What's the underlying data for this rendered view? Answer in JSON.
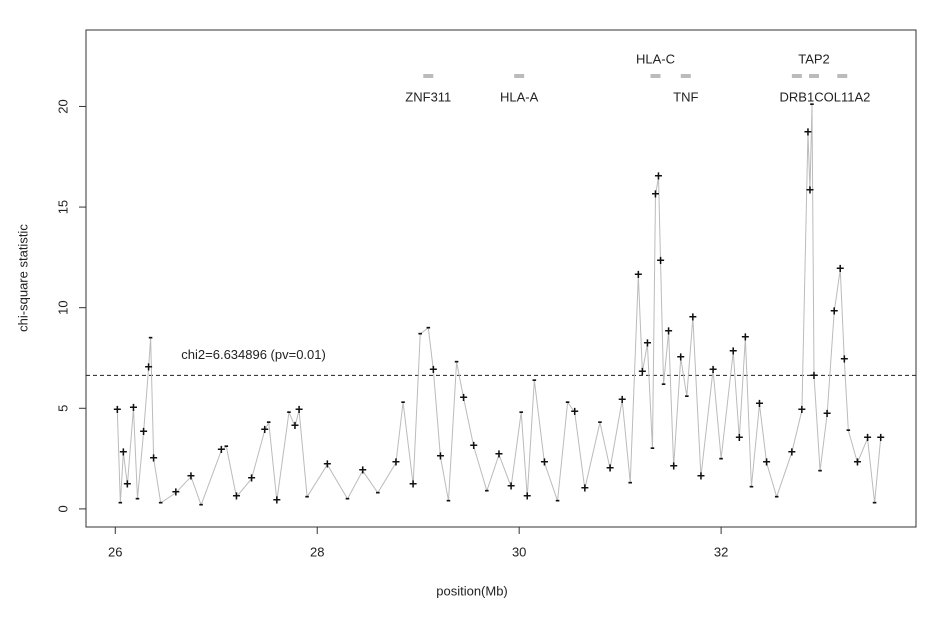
{
  "chart_data": {
    "type": "line",
    "xlabel": "position(Mb)",
    "ylabel": "chi-square statistic",
    "xlim": [
      25.71,
      33.93
    ],
    "ylim": [
      -0.9,
      23.8
    ],
    "xticks": [
      26,
      28,
      30,
      32
    ],
    "yticks": [
      0,
      5,
      10,
      15,
      20
    ],
    "line_color": "#bbbbbb",
    "point_color": "#111111",
    "x": [
      26.02,
      26.05,
      26.08,
      26.12,
      26.18,
      26.22,
      26.28,
      26.33,
      26.35,
      26.38,
      26.45,
      26.6,
      26.75,
      26.85,
      27.05,
      27.1,
      27.2,
      27.35,
      27.48,
      27.52,
      27.6,
      27.72,
      27.78,
      27.82,
      27.9,
      28.1,
      28.3,
      28.45,
      28.6,
      28.78,
      28.85,
      28.95,
      29.02,
      29.1,
      29.15,
      29.22,
      29.3,
      29.38,
      29.45,
      29.55,
      29.68,
      29.8,
      29.92,
      30.02,
      30.08,
      30.15,
      30.25,
      30.38,
      30.48,
      30.55,
      30.65,
      30.8,
      30.9,
      31.02,
      31.1,
      31.18,
      31.22,
      31.27,
      31.32,
      31.35,
      31.38,
      31.4,
      31.43,
      31.48,
      31.53,
      31.6,
      31.66,
      31.72,
      31.8,
      31.92,
      32.0,
      32.12,
      32.18,
      32.24,
      32.3,
      32.38,
      32.45,
      32.55,
      32.7,
      32.8,
      32.86,
      32.88,
      32.9,
      32.92,
      32.98,
      33.05,
      33.12,
      33.18,
      33.22,
      33.26,
      33.35,
      33.45,
      33.52,
      33.58
    ],
    "values": [
      4.9,
      0.3,
      2.8,
      1.2,
      5.0,
      0.5,
      3.8,
      7.0,
      8.5,
      2.5,
      0.3,
      0.8,
      1.6,
      0.2,
      2.9,
      3.1,
      0.6,
      1.5,
      3.9,
      4.3,
      0.4,
      4.8,
      4.1,
      4.9,
      0.6,
      2.2,
      0.5,
      1.9,
      0.8,
      2.3,
      5.3,
      1.2,
      8.7,
      9.0,
      6.9,
      2.6,
      0.4,
      7.3,
      5.5,
      3.1,
      0.9,
      2.7,
      1.1,
      4.8,
      0.6,
      6.4,
      2.3,
      0.4,
      5.3,
      4.8,
      1.0,
      4.3,
      2.0,
      5.4,
      1.3,
      11.6,
      6.8,
      8.2,
      3.0,
      15.6,
      16.5,
      12.3,
      6.2,
      8.8,
      2.1,
      7.5,
      5.6,
      9.5,
      1.6,
      6.9,
      2.5,
      7.8,
      3.5,
      8.5,
      1.1,
      5.2,
      2.3,
      0.6,
      2.8,
      4.9,
      18.7,
      15.8,
      20.1,
      6.6,
      1.9,
      4.7,
      9.8,
      11.9,
      7.4,
      3.9,
      2.3,
      3.5,
      0.3,
      3.5
    ],
    "symbols": [
      "+",
      "-",
      "+",
      "+",
      "+",
      "-",
      "+",
      "+",
      "-",
      "+",
      "-",
      "+",
      "+",
      "-",
      "+",
      "-",
      "+",
      "+",
      "+",
      "-",
      "+",
      "-",
      "+",
      "+",
      "-",
      "+",
      "-",
      "+",
      "-",
      "+",
      "-",
      "+",
      "-",
      "-",
      "+",
      "+",
      "-",
      "-",
      "+",
      "+",
      "-",
      "+",
      "+",
      "-",
      "+",
      "-",
      "+",
      "-",
      "-",
      "+",
      "+",
      "-",
      "+",
      "+",
      "-",
      "+",
      "+",
      "+",
      "-",
      "+",
      "+",
      "+",
      "-",
      "+",
      "+",
      "+",
      "-",
      "+",
      "+",
      "+",
      "-",
      "+",
      "+",
      "+",
      "-",
      "+",
      "+",
      "-",
      "+",
      "+",
      "+",
      "+",
      "-",
      "+",
      "-",
      "+",
      "+",
      "+",
      "+",
      "-",
      "+",
      "+",
      "-",
      "+"
    ],
    "threshold": {
      "value": 6.634896,
      "label": "chi2=6.634896 (pv=0.01)"
    },
    "genes": [
      {
        "label": "ZNF311",
        "x": 29.1,
        "label_position": "below"
      },
      {
        "label": "HLA-A",
        "x": 30.0,
        "label_position": "below"
      },
      {
        "label": "HLA-C",
        "x": 31.35,
        "label_position": "above"
      },
      {
        "label": "TNF",
        "x": 31.65,
        "label_position": "below"
      },
      {
        "label": "DRB1",
        "x": 32.75,
        "label_position": "below"
      },
      {
        "label": "TAP2",
        "x": 32.92,
        "label_position": "above"
      },
      {
        "label": "COL11A2",
        "x": 33.2,
        "label_position": "below"
      }
    ]
  }
}
